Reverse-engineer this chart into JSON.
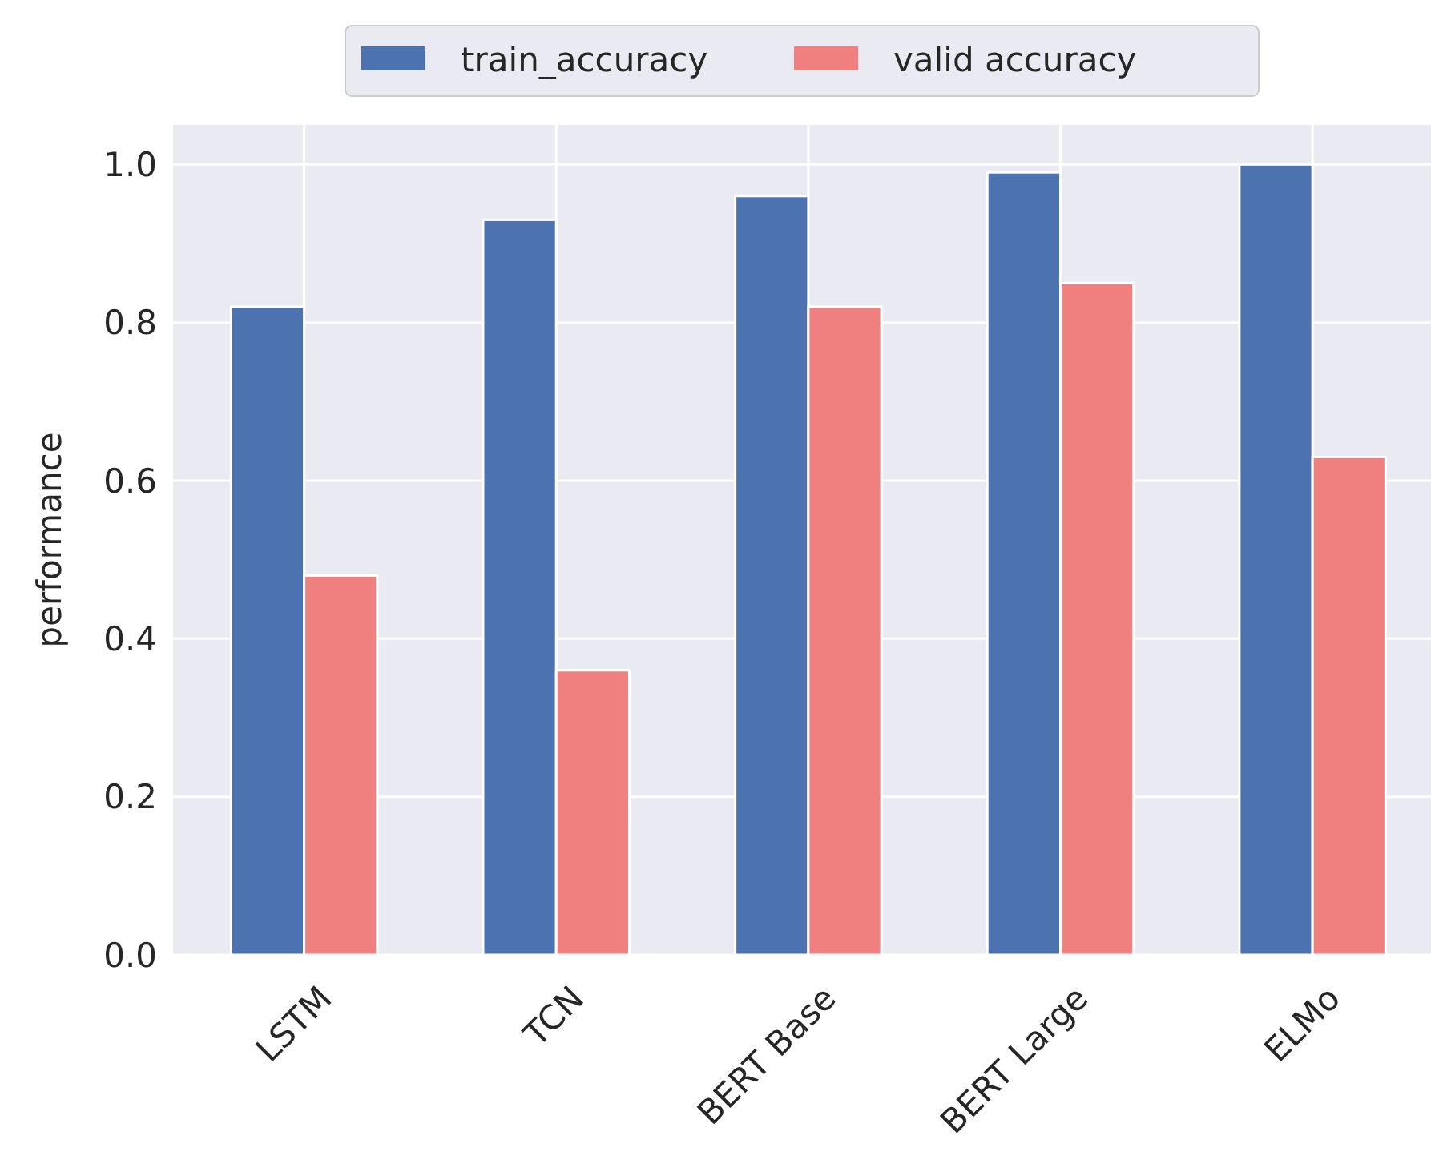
{
  "chart_data": {
    "type": "bar",
    "ylabel": "performance",
    "categories": [
      "LSTM",
      "TCN",
      "BERT Base",
      "BERT Large",
      "ELMo"
    ],
    "series": [
      {
        "name": "train_accuracy",
        "color": "#4c72b0",
        "values": [
          0.82,
          0.93,
          0.96,
          0.99,
          1.0
        ]
      },
      {
        "name": "valid accuracy",
        "color": "#f08080",
        "values": [
          0.48,
          0.36,
          0.82,
          0.85,
          0.63
        ]
      }
    ],
    "ylim": [
      0,
      1.05
    ],
    "yticks": [
      {
        "value": 0,
        "label": "0.0"
      },
      {
        "value": 0.2,
        "label": "0.2"
      },
      {
        "value": 0.4,
        "label": "0.4"
      },
      {
        "value": 0.6,
        "label": "0.6"
      },
      {
        "value": 0.8,
        "label": "0.8"
      },
      {
        "value": 1,
        "label": "1.0"
      }
    ],
    "grid": true,
    "legend": "top"
  }
}
